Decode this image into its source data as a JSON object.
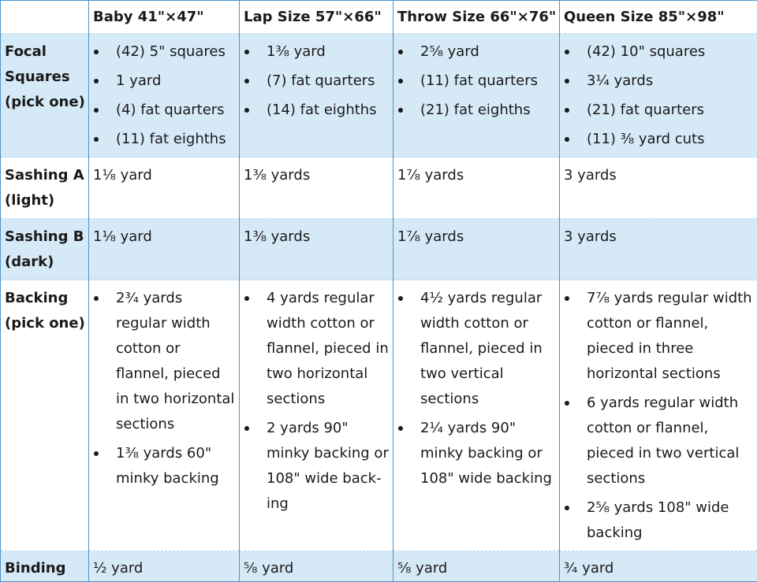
{
  "headers": [
    "",
    "Baby 41\"×47\"",
    "Lap Size 57\"×66\"",
    "Throw Size 66\"×76\"",
    "Queen Size 85\"×98\""
  ],
  "rows": {
    "focal": {
      "label_line1": "Focal",
      "label_line2": "Squares",
      "label_line3": "(pick one)",
      "baby": [
        "(42) 5\" squares",
        "1 yard",
        "(4) fat quarters",
        "(11) fat eighths"
      ],
      "lap": [
        "1⅜ yard",
        "(7) fat quarters",
        "(14) fat eighths"
      ],
      "throw": [
        "2⅝ yard",
        "(11) fat quarters",
        "(21) fat eighths"
      ],
      "queen": [
        "(42) 10\" squares",
        "3¼ yards",
        "(21) fat quarters",
        "(11) ⅜ yard cuts"
      ]
    },
    "sashing_a": {
      "label_line1": "Sashing A",
      "label_line2": "(light)",
      "baby": "1⅛ yard",
      "lap": "1⅜ yards",
      "throw": "1⅞ yards",
      "queen": "3 yards"
    },
    "sashing_b": {
      "label_line1": "Sashing B",
      "label_line2": "(dark)",
      "baby": "1⅛ yard",
      "lap": "1⅜ yards",
      "throw": "1⅞ yards",
      "queen": "3 yards"
    },
    "backing": {
      "label_line1": "Backing",
      "label_line2": "(pick one)",
      "baby": [
        "2¾ yards regular width cotton or flannel, pieced in two horizontal sections",
        "1⅜ yards 60\" minky backing"
      ],
      "lap": [
        "4 yards regular width cotton or flannel, pieced in two horizontal sections",
        "2 yards 90\" minky backing or 108\" wide back-ing"
      ],
      "throw": [
        "4½ yards regular width cotton or flannel, pieced in two vertical sections",
        "2¼ yards 90\" minky backing or 108\" wide backing"
      ],
      "queen": [
        "7⅞ yards regular width cotton or flannel, pieced in three horizontal sections",
        "6 yards regular width cotton or flannel, pieced in two vertical sections",
        "2⅝ yards 108\" wide backing"
      ]
    },
    "binding": {
      "label": "Binding",
      "baby": "½ yard",
      "lap": "⅝ yard",
      "throw": "⅝ yard",
      "queen": "¾ yard"
    }
  },
  "colors": {
    "shade": "#d6e9f7",
    "border": "#4f93c9"
  }
}
